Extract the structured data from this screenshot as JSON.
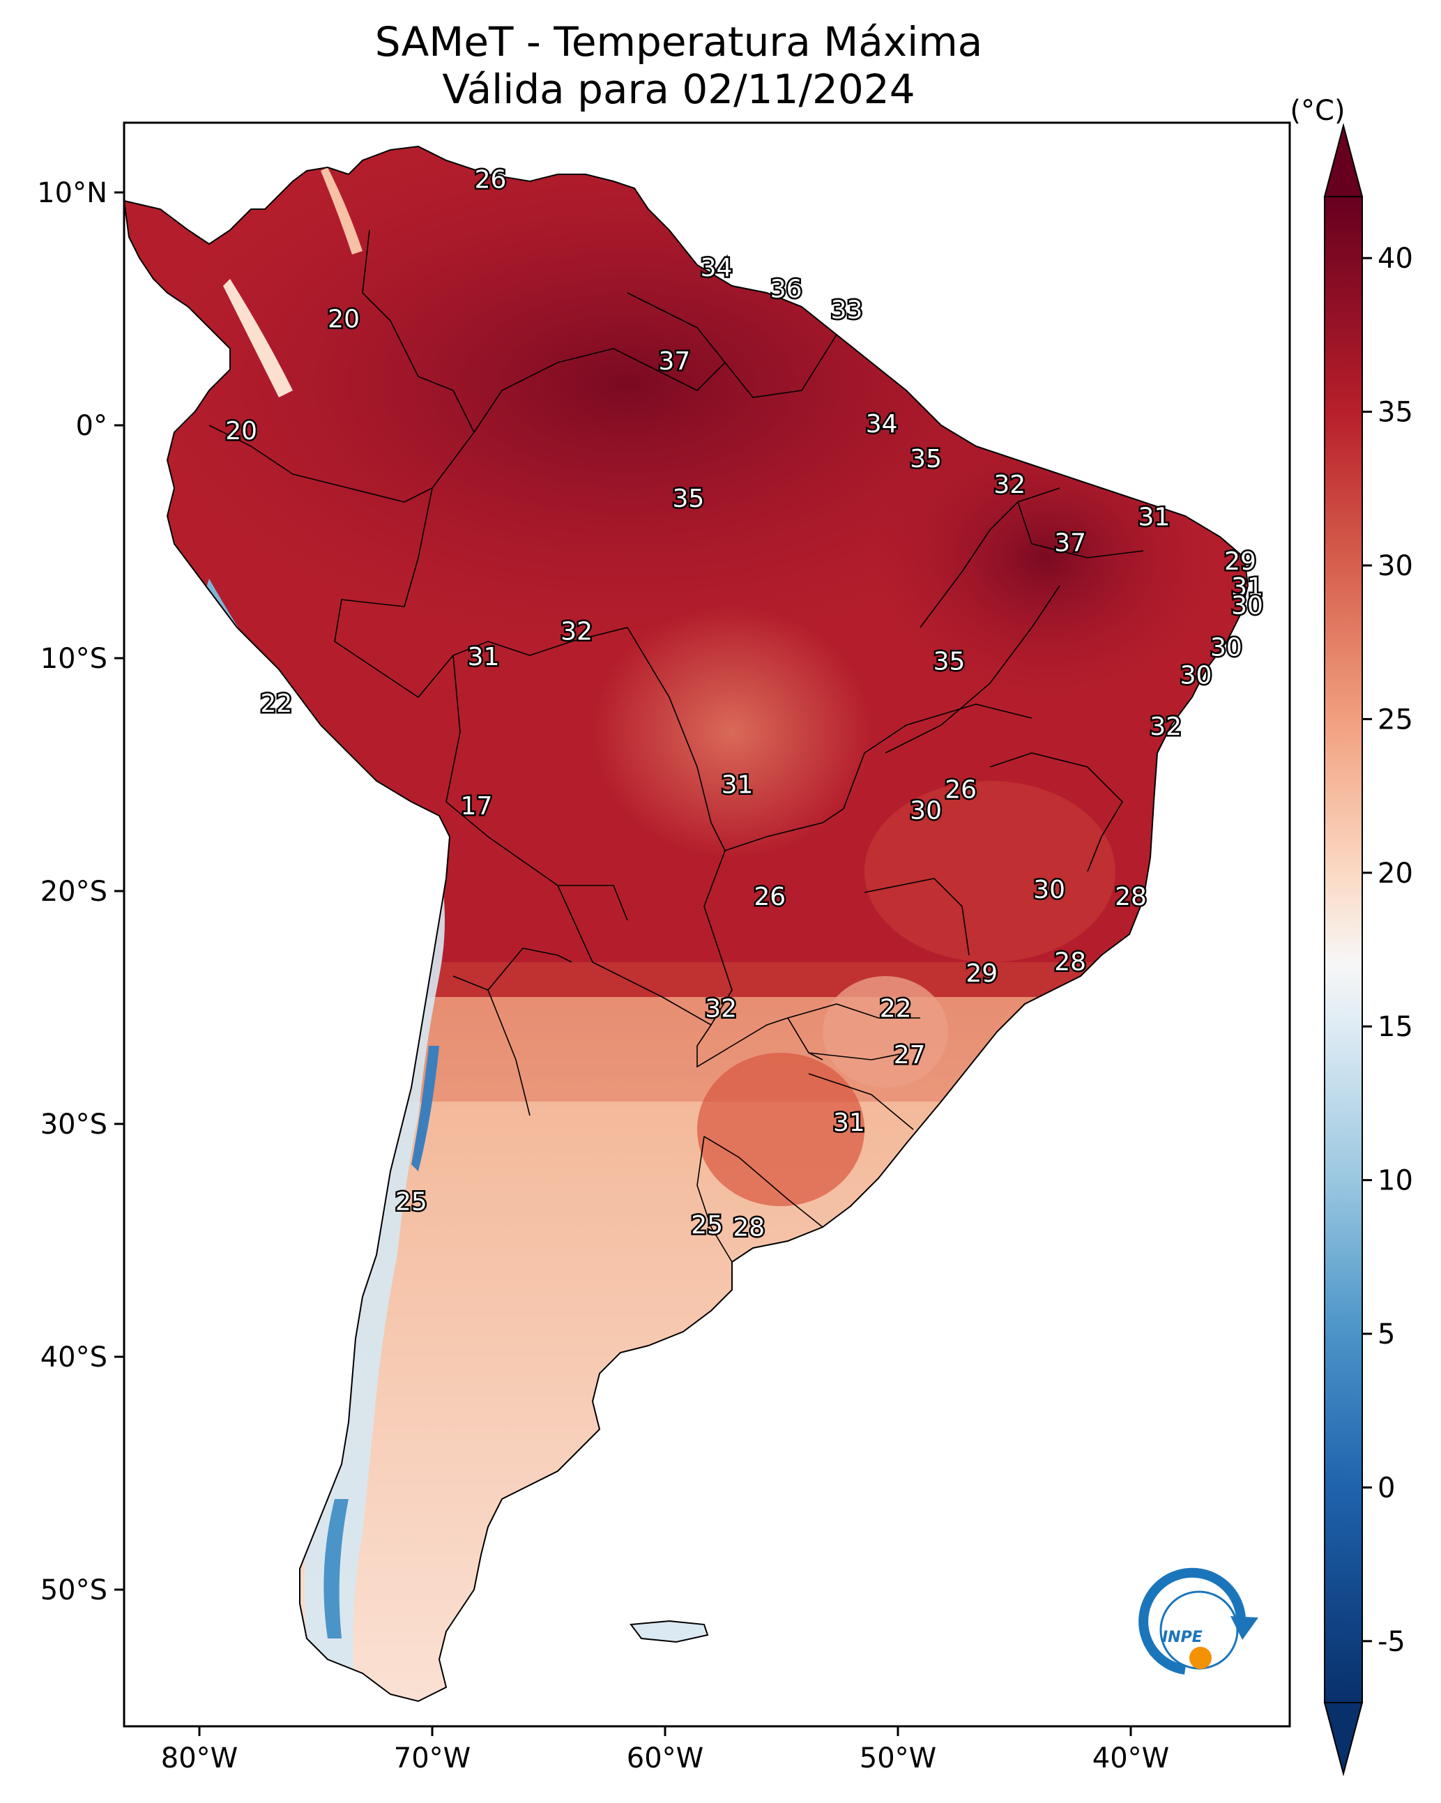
{
  "title": {
    "line1": "SAMeT - Temperatura Máxima",
    "line2": "Válida para 02/11/2024"
  },
  "units": "(°C)",
  "lon_ticks": [
    "80°W",
    "70°W",
    "60°W",
    "50°W",
    "40°W"
  ],
  "lat_ticks": [
    "10°N",
    "0°",
    "10°S",
    "20°S",
    "30°S",
    "40°S",
    "50°S"
  ],
  "colorbar": {
    "min": -7,
    "max": 42,
    "ticks": [
      "40",
      "35",
      "30",
      "25",
      "20",
      "15",
      "10",
      "5",
      "0",
      "-5"
    ],
    "colors": {
      "c_m7": "#08306b",
      "c_0": "#1f63ad",
      "c_5": "#4a94c8",
      "c_10": "#9ac7e0",
      "c_15": "#deebf4",
      "c_17": "#f7f7f7",
      "c_20": "#fbd9c4",
      "c_25": "#f1a07f",
      "c_30": "#d6604d",
      "c_35": "#b81f2b",
      "c_40": "#67001f"
    }
  },
  "isolines": [
    {
      "value": "26",
      "lon": -67.5,
      "lat": 10.5
    },
    {
      "value": "34",
      "lon": -57.8,
      "lat": 6.7
    },
    {
      "value": "36",
      "lon": -54.8,
      "lat": 5.8
    },
    {
      "value": "33",
      "lon": -52.2,
      "lat": 4.9
    },
    {
      "value": "20",
      "lon": -73.8,
      "lat": 4.5
    },
    {
      "value": "37",
      "lon": -59.6,
      "lat": 2.7
    },
    {
      "value": "20",
      "lon": -78.2,
      "lat": -0.3
    },
    {
      "value": "34",
      "lon": -50.7,
      "lat": 0.0
    },
    {
      "value": "35",
      "lon": -48.8,
      "lat": -1.5
    },
    {
      "value": "32",
      "lon": -45.2,
      "lat": -2.6
    },
    {
      "value": "35",
      "lon": -59.0,
      "lat": -3.2
    },
    {
      "value": "31",
      "lon": -39.0,
      "lat": -4.0
    },
    {
      "value": "37",
      "lon": -42.6,
      "lat": -5.1
    },
    {
      "value": "29",
      "lon": -35.3,
      "lat": -5.9
    },
    {
      "value": "31",
      "lon": -35.0,
      "lat": -7.0
    },
    {
      "value": "30",
      "lon": -35.0,
      "lat": -7.8
    },
    {
      "value": "32",
      "lon": -63.8,
      "lat": -8.9
    },
    {
      "value": "30",
      "lon": -35.9,
      "lat": -9.6
    },
    {
      "value": "31",
      "lon": -67.8,
      "lat": -10.0
    },
    {
      "value": "35",
      "lon": -47.8,
      "lat": -10.2
    },
    {
      "value": "30",
      "lon": -37.2,
      "lat": -10.8
    },
    {
      "value": "22",
      "lon": -76.7,
      "lat": -12.0
    },
    {
      "value": "32",
      "lon": -38.5,
      "lat": -13.0
    },
    {
      "value": "31",
      "lon": -56.9,
      "lat": -15.5
    },
    {
      "value": "26",
      "lon": -47.3,
      "lat": -15.7
    },
    {
      "value": "30",
      "lon": -48.8,
      "lat": -16.6
    },
    {
      "value": "17",
      "lon": -68.1,
      "lat": -16.4
    },
    {
      "value": "30",
      "lon": -43.5,
      "lat": -20.0
    },
    {
      "value": "26",
      "lon": -55.5,
      "lat": -20.3
    },
    {
      "value": "28",
      "lon": -40.0,
      "lat": -20.3
    },
    {
      "value": "28",
      "lon": -42.6,
      "lat": -23.1
    },
    {
      "value": "29",
      "lon": -46.4,
      "lat": -23.6
    },
    {
      "value": "32",
      "lon": -57.6,
      "lat": -25.1
    },
    {
      "value": "22",
      "lon": -50.1,
      "lat": -25.1
    },
    {
      "value": "27",
      "lon": -49.5,
      "lat": -27.1
    },
    {
      "value": "31",
      "lon": -52.1,
      "lat": -30.0
    },
    {
      "value": "25",
      "lon": -70.9,
      "lat": -33.4
    },
    {
      "value": "25",
      "lon": -58.2,
      "lat": -34.4
    },
    {
      "value": "28",
      "lon": -56.4,
      "lat": -34.5
    }
  ],
  "logo": {
    "text": "INPE"
  }
}
